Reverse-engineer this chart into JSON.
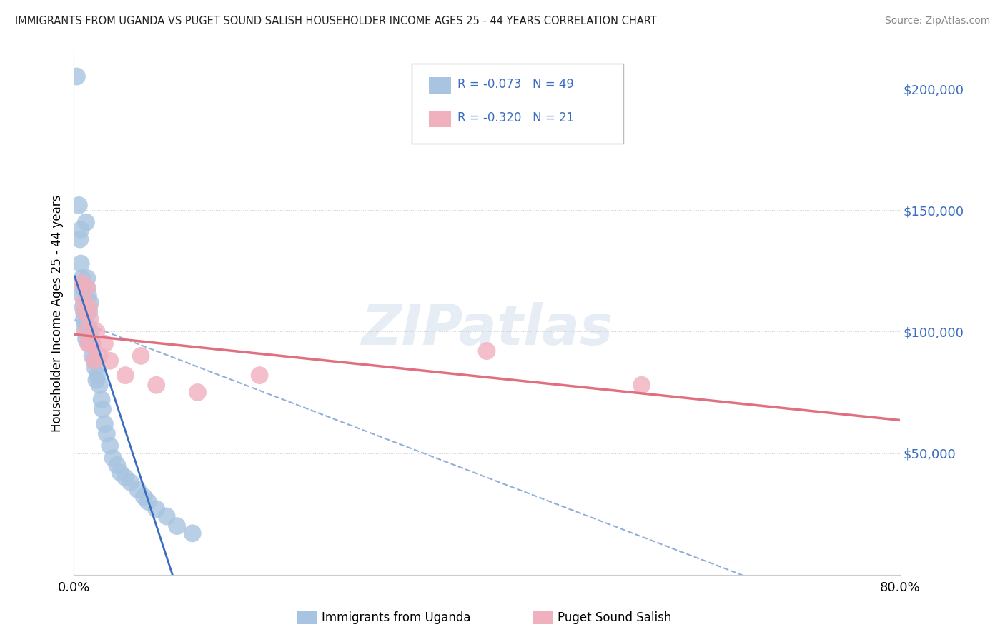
{
  "title": "IMMIGRANTS FROM UGANDA VS PUGET SOUND SALISH HOUSEHOLDER INCOME AGES 25 - 44 YEARS CORRELATION CHART",
  "source": "Source: ZipAtlas.com",
  "ylabel": "Householder Income Ages 25 - 44 years",
  "watermark": "ZIPatlas",
  "xlim": [
    0.0,
    0.8
  ],
  "ylim": [
    0,
    215000
  ],
  "ytick_vals": [
    0,
    50000,
    100000,
    150000,
    200000
  ],
  "ytick_labels": [
    "",
    "$50,000",
    "$100,000",
    "$150,000",
    "$200,000"
  ],
  "xtick_vals": [
    0.0,
    0.8
  ],
  "xtick_labels": [
    "0.0%",
    "80.0%"
  ],
  "legend_r1": "-0.073",
  "legend_n1": "49",
  "legend_r2": "-0.320",
  "legend_n2": "21",
  "color_blue": "#a8c4e0",
  "color_pink": "#f0b0be",
  "line_color_blue": "#3a6dbf",
  "line_color_pink": "#e07080",
  "line_color_dashed": "#90b0d8",
  "title_color": "#222222",
  "source_color": "#888888",
  "legend_text_color": "#3a6dbf",
  "blue_x": [
    0.003,
    0.005,
    0.006,
    0.007,
    0.007,
    0.008,
    0.008,
    0.009,
    0.009,
    0.01,
    0.01,
    0.011,
    0.011,
    0.012,
    0.012,
    0.013,
    0.013,
    0.013,
    0.014,
    0.014,
    0.015,
    0.015,
    0.016,
    0.016,
    0.017,
    0.018,
    0.018,
    0.02,
    0.021,
    0.022,
    0.023,
    0.025,
    0.027,
    0.028,
    0.03,
    0.032,
    0.035,
    0.038,
    0.042,
    0.045,
    0.05,
    0.055,
    0.062,
    0.068,
    0.072,
    0.08,
    0.09,
    0.1,
    0.115
  ],
  "blue_y": [
    205000,
    152000,
    138000,
    128000,
    142000,
    122000,
    115000,
    110000,
    118000,
    105000,
    108000,
    100000,
    103000,
    97000,
    145000,
    122000,
    118000,
    108000,
    102000,
    115000,
    108000,
    95000,
    100000,
    112000,
    97000,
    90000,
    95000,
    88000,
    85000,
    80000,
    82000,
    78000,
    72000,
    68000,
    62000,
    58000,
    53000,
    48000,
    45000,
    42000,
    40000,
    38000,
    35000,
    32000,
    30000,
    27000,
    24000,
    20000,
    17000
  ],
  "pink_x": [
    0.008,
    0.01,
    0.011,
    0.012,
    0.013,
    0.014,
    0.015,
    0.016,
    0.018,
    0.02,
    0.022,
    0.025,
    0.03,
    0.035,
    0.05,
    0.065,
    0.08,
    0.12,
    0.18,
    0.4,
    0.55
  ],
  "pink_y": [
    120000,
    112000,
    108000,
    100000,
    118000,
    95000,
    110000,
    105000,
    95000,
    88000,
    100000,
    90000,
    95000,
    88000,
    82000,
    90000,
    78000,
    75000,
    82000,
    92000,
    78000
  ],
  "background_color": "#ffffff",
  "grid_color": "#cccccc"
}
